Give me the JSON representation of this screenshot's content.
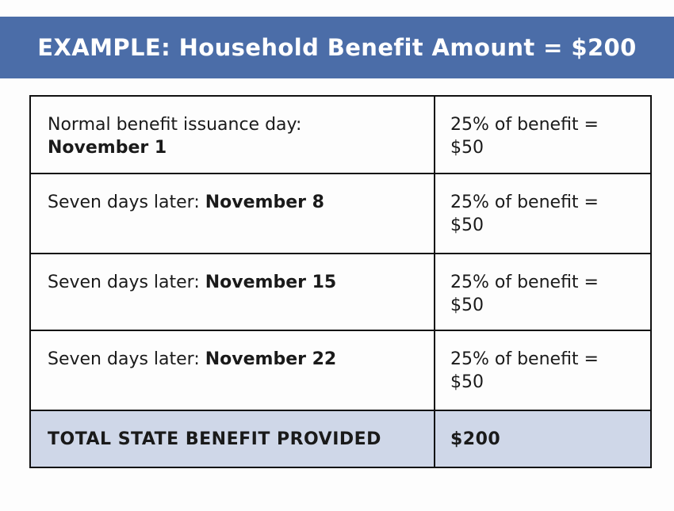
{
  "page": {
    "background_color": "#fdfdfd"
  },
  "banner": {
    "title": "EXAMPLE: Household Benefit Amount = $200",
    "background_color": "#4b6da8",
    "text_color": "#ffffff"
  },
  "table": {
    "border_color": "#111111",
    "total_row_background_color": "#cfd7e8",
    "rows": [
      {
        "left_regular": "Normal benefit issuance day:",
        "left_bold": "November 1",
        "right_line1": "25% of benefit =",
        "right_line2": "$50"
      },
      {
        "left_regular": "Seven days later: ",
        "left_bold": "November 8",
        "right_line1": "25% of benefit =",
        "right_line2": "$50"
      },
      {
        "left_regular": "Seven days later: ",
        "left_bold": "November 15",
        "right_line1": "25% of benefit =",
        "right_line2": "$50"
      },
      {
        "left_regular": "Seven days later: ",
        "left_bold": "November 22",
        "right_line1": "25% of benefit =",
        "right_line2": "$50"
      }
    ],
    "total_row": {
      "label": "TOTAL STATE BENEFIT PROVIDED",
      "value": "$200"
    }
  }
}
